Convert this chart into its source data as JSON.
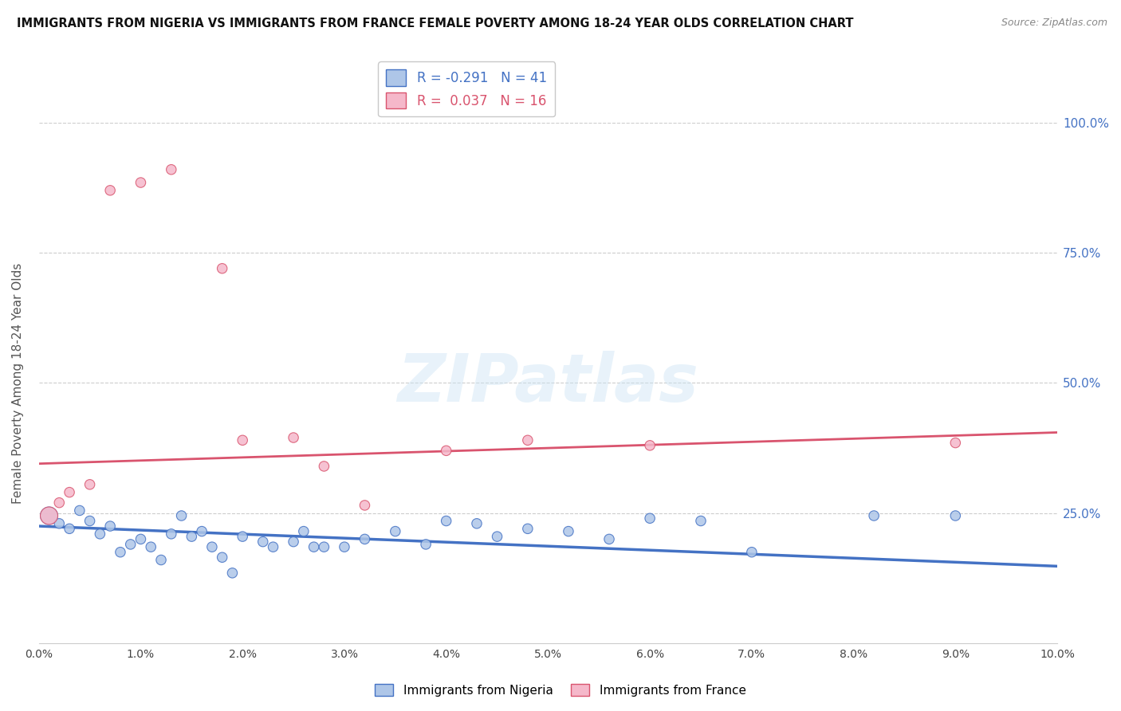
{
  "title": "IMMIGRANTS FROM NIGERIA VS IMMIGRANTS FROM FRANCE FEMALE POVERTY AMONG 18-24 YEAR OLDS CORRELATION CHART",
  "source": "Source: ZipAtlas.com",
  "ylabel": "Female Poverty Among 18-24 Year Olds",
  "nigeria_label": "Immigrants from Nigeria",
  "france_label": "Immigrants from France",
  "nigeria_R": -0.291,
  "nigeria_N": 41,
  "france_R": 0.037,
  "france_N": 16,
  "nigeria_color": "#aec6e8",
  "france_color": "#f5b8ca",
  "nigeria_line_color": "#4472c4",
  "france_line_color": "#d9546e",
  "nigeria_x": [
    0.001,
    0.002,
    0.003,
    0.004,
    0.005,
    0.006,
    0.007,
    0.008,
    0.009,
    0.01,
    0.011,
    0.012,
    0.013,
    0.014,
    0.015,
    0.016,
    0.017,
    0.018,
    0.019,
    0.02,
    0.022,
    0.023,
    0.025,
    0.026,
    0.027,
    0.028,
    0.03,
    0.032,
    0.035,
    0.038,
    0.04,
    0.043,
    0.045,
    0.048,
    0.052,
    0.056,
    0.06,
    0.065,
    0.07,
    0.082,
    0.09
  ],
  "nigeria_y": [
    0.245,
    0.23,
    0.22,
    0.255,
    0.235,
    0.21,
    0.225,
    0.175,
    0.19,
    0.2,
    0.185,
    0.16,
    0.21,
    0.245,
    0.205,
    0.215,
    0.185,
    0.165,
    0.135,
    0.205,
    0.195,
    0.185,
    0.195,
    0.215,
    0.185,
    0.185,
    0.185,
    0.2,
    0.215,
    0.19,
    0.235,
    0.23,
    0.205,
    0.22,
    0.215,
    0.2,
    0.24,
    0.235,
    0.175,
    0.245,
    0.245
  ],
  "nigeria_sizes": [
    250,
    80,
    80,
    80,
    80,
    80,
    80,
    80,
    80,
    80,
    80,
    80,
    80,
    80,
    80,
    80,
    80,
    80,
    80,
    80,
    80,
    80,
    80,
    80,
    80,
    80,
    80,
    80,
    80,
    80,
    80,
    80,
    80,
    80,
    80,
    80,
    80,
    80,
    80,
    80,
    80
  ],
  "france_x": [
    0.001,
    0.002,
    0.003,
    0.005,
    0.007,
    0.01,
    0.013,
    0.018,
    0.02,
    0.025,
    0.028,
    0.032,
    0.04,
    0.048,
    0.06,
    0.09
  ],
  "france_y": [
    0.245,
    0.27,
    0.29,
    0.305,
    0.87,
    0.885,
    0.91,
    0.72,
    0.39,
    0.395,
    0.34,
    0.265,
    0.37,
    0.39,
    0.38,
    0.385
  ],
  "france_sizes": [
    250,
    80,
    80,
    80,
    80,
    80,
    80,
    80,
    80,
    80,
    80,
    80,
    80,
    80,
    80,
    80
  ],
  "france_line_y0": 0.345,
  "france_line_y1": 0.405,
  "nigeria_line_y0": 0.225,
  "nigeria_line_y1": 0.148,
  "xlim": [
    0.0,
    0.1
  ],
  "ylim": [
    0.0,
    1.0
  ],
  "watermark": "ZIPatlas",
  "background_color": "#ffffff",
  "grid_color": "#cccccc"
}
